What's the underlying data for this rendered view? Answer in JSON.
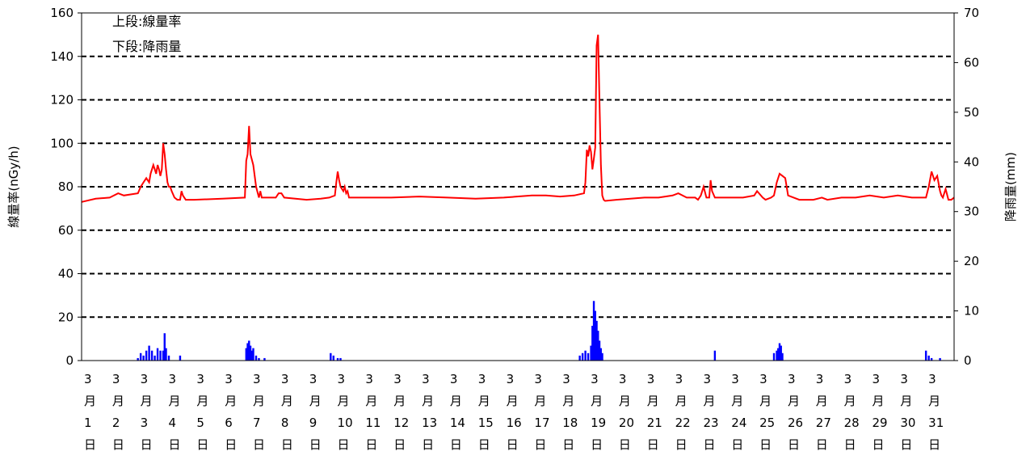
{
  "chart_data": {
    "type": "line",
    "legend": {
      "line1": "上段:線量率",
      "line2": "下段:降雨量"
    },
    "y_left": {
      "label": "線量率(nGy/h)",
      "min": 0,
      "max": 160,
      "ticks": [
        0,
        20,
        40,
        60,
        80,
        100,
        120,
        140,
        160
      ]
    },
    "y_right": {
      "label": "降雨量(mm)",
      "min": 0,
      "max": 70,
      "ticks": [
        0,
        10,
        20,
        30,
        40,
        50,
        60,
        70
      ]
    },
    "x": {
      "start_day": 1,
      "end_day": 32,
      "tick_labels": [
        "3月1日",
        "3月2日",
        "3月3日",
        "3月4日",
        "3月5日",
        "3月6日",
        "3月7日",
        "3月8日",
        "3月9日",
        "3月10日",
        "3月11日",
        "3月12日",
        "3月13日",
        "3月14日",
        "3月15日",
        "3月16日",
        "3月17日",
        "3月18日",
        "3月19日",
        "3月20日",
        "3月21日",
        "3月22日",
        "3月23日",
        "3月24日",
        "3月25日",
        "3月26日",
        "3月27日",
        "3月28日",
        "3月29日",
        "3月30日",
        "3月31日"
      ]
    },
    "grid": "horizontal dashed",
    "series": [
      {
        "type": "line",
        "axis": "left",
        "color": "#ff0000",
        "x": [
          1.0,
          1.5,
          2.0,
          2.3,
          2.5,
          3.0,
          3.1,
          3.2,
          3.3,
          3.4,
          3.45,
          3.55,
          3.6,
          3.65,
          3.7,
          3.75,
          3.8,
          3.85,
          3.9,
          3.95,
          4.0,
          4.05,
          4.1,
          4.15,
          4.2,
          4.3,
          4.4,
          4.5,
          4.55,
          4.6,
          4.7,
          5.0,
          6.0,
          6.8,
          6.85,
          6.9,
          6.95,
          7.0,
          7.1,
          7.2,
          7.3,
          7.35,
          7.4,
          7.5,
          7.9,
          8.0,
          8.1,
          8.2,
          9.0,
          9.5,
          9.8,
          10.0,
          10.05,
          10.1,
          10.15,
          10.2,
          10.3,
          10.35,
          10.4,
          10.45,
          10.5,
          11.0,
          12.0,
          13.0,
          14.0,
          15.0,
          16.0,
          17.0,
          17.5,
          18.0,
          18.5,
          18.85,
          18.9,
          18.95,
          19.0,
          19.05,
          19.1,
          19.15,
          19.2,
          19.25,
          19.3,
          19.35,
          19.4,
          19.45,
          19.5,
          19.55,
          19.6,
          20.0,
          21.0,
          21.5,
          22.0,
          22.2,
          22.5,
          22.8,
          22.9,
          23.0,
          23.1,
          23.2,
          23.3,
          23.35,
          23.4,
          23.5,
          24.0,
          24.5,
          24.9,
          25.0,
          25.2,
          25.3,
          25.5,
          25.6,
          25.7,
          25.8,
          25.9,
          26.0,
          26.1,
          26.3,
          26.5,
          27.0,
          27.3,
          27.5,
          28.0,
          28.5,
          29.0,
          29.5,
          30.0,
          30.5,
          31.0,
          31.1,
          31.2,
          31.3,
          31.4,
          31.5,
          31.55,
          31.6,
          31.7,
          31.8,
          31.9,
          32.0
        ],
        "y": [
          73,
          74.5,
          75,
          77,
          76,
          77,
          80,
          82,
          84,
          82,
          86,
          90,
          88,
          86,
          90,
          88,
          85,
          88,
          100,
          95,
          88,
          82,
          80,
          80,
          78,
          75,
          74,
          74,
          78,
          76,
          74,
          74,
          74.5,
          75,
          92,
          95,
          108,
          95,
          90,
          80,
          75,
          78,
          75,
          75,
          75,
          77,
          77,
          75,
          74,
          74.5,
          75,
          76,
          82,
          87,
          83,
          80,
          78,
          80,
          77,
          78,
          75,
          75,
          75,
          75.5,
          75,
          74.5,
          75,
          76,
          76,
          75.5,
          76,
          77,
          82,
          97,
          94,
          99,
          96,
          88,
          93,
          98,
          145,
          150,
          120,
          90,
          76,
          74,
          73.5,
          74,
          75,
          75,
          76,
          77,
          75,
          75,
          74,
          76,
          80,
          75,
          75,
          83,
          78,
          75,
          75,
          75,
          76,
          78,
          75,
          74,
          75,
          76,
          82,
          86,
          85,
          84,
          76,
          75,
          74,
          74,
          75,
          74,
          75,
          75,
          76,
          75,
          76,
          75,
          75,
          80,
          87,
          83,
          85,
          78,
          76,
          75,
          79,
          74,
          74,
          75
        ]
      },
      {
        "type": "bar",
        "axis": "right",
        "color": "#0000ff",
        "x": [
          3.0,
          3.1,
          3.2,
          3.3,
          3.4,
          3.5,
          3.6,
          3.7,
          3.8,
          3.9,
          3.95,
          4.0,
          4.1,
          4.5,
          6.85,
          6.9,
          6.95,
          7.0,
          7.05,
          7.1,
          7.2,
          7.3,
          7.5,
          9.85,
          9.95,
          10.1,
          10.2,
          18.7,
          18.8,
          18.9,
          19.0,
          19.1,
          19.15,
          19.2,
          19.25,
          19.3,
          19.35,
          19.4,
          19.45,
          19.5,
          23.5,
          25.6,
          25.7,
          25.75,
          25.8,
          25.85,
          25.9,
          31.0,
          31.1,
          31.2,
          31.5
        ],
        "y": [
          0.5,
          1.5,
          1,
          2,
          3,
          2,
          1,
          2.5,
          2,
          2,
          5.5,
          2.5,
          1,
          1,
          2.5,
          3.5,
          4,
          3,
          2,
          2.5,
          1,
          0.5,
          0.5,
          1.5,
          1,
          0.5,
          0.5,
          1,
          1.5,
          2,
          1.5,
          3,
          7,
          12,
          10,
          8,
          6,
          4,
          2.5,
          1.5,
          2,
          1.5,
          2,
          2.5,
          3.5,
          3,
          1.5,
          2,
          1,
          0.5,
          0.5
        ]
      }
    ]
  }
}
